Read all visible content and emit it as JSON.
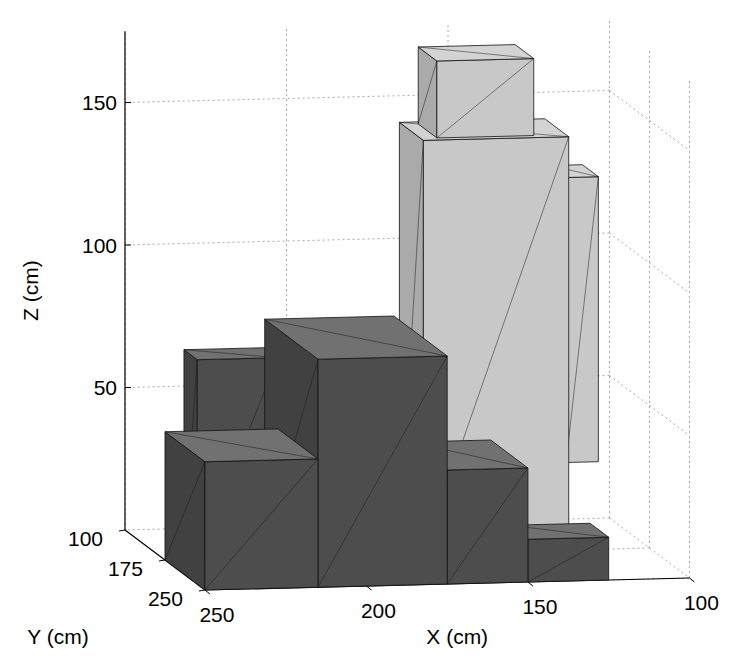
{
  "chart_data": {
    "type": "mesh3d",
    "xlabel": "X (cm)",
    "ylabel": "Y (cm)",
    "zlabel": "Z (cm)",
    "xlim": [
      100,
      250
    ],
    "ylim": [
      100,
      250
    ],
    "zlim": [
      0,
      175
    ],
    "xticks": [
      100,
      150,
      200,
      250
    ],
    "yticks": [
      100,
      175,
      250
    ],
    "zticks": [
      50,
      100,
      150
    ],
    "grid": true,
    "series": [
      {
        "color": "#4d4d4d",
        "boxes": [
          [
            215,
            250,
            175,
            250,
            0,
            45
          ],
          [
            175,
            215,
            150,
            250,
            0,
            80
          ],
          [
            150,
            175,
            180,
            250,
            0,
            40
          ],
          [
            125,
            150,
            215,
            250,
            0,
            15
          ],
          [
            215,
            240,
            150,
            175,
            0,
            70
          ]
        ]
      },
      {
        "color": "#c8c8c8",
        "boxes": [
          [
            125,
            170,
            130,
            175,
            0,
            145
          ],
          [
            135,
            165,
            135,
            170,
            145,
            172
          ],
          [
            115,
            125,
            140,
            170,
            30,
            130
          ]
        ]
      }
    ]
  }
}
